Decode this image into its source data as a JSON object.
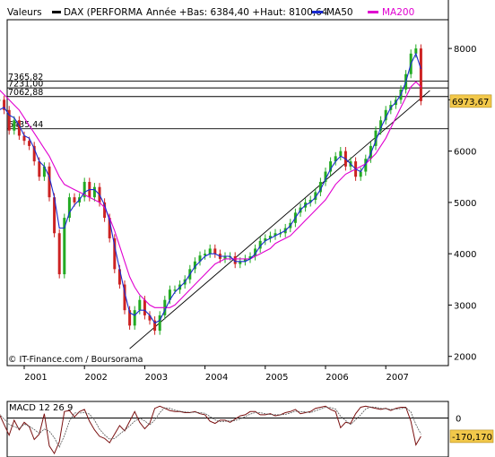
{
  "header": {
    "series_label": "Valeurs",
    "instrument": "DAX (PERFORMA",
    "period_info": "Année +Bas: 6384,40 +Haut: 8100,64",
    "ma50_label": "MA50",
    "ma200_label": "MA200"
  },
  "credit": "© IT-Finance.com / Boursorama",
  "colors": {
    "price_up": "#22aa22",
    "price_down": "#cc2222",
    "ma50": "#1a2ad0",
    "ma200": "#e000d0",
    "last_badge": "#f2c84a",
    "frame": "#000000",
    "grid": "#000000"
  },
  "chart_data": [
    {
      "type": "line",
      "title": "DAX (PERFORMA",
      "y_scale": "linear",
      "ylim": [
        1900,
        8500
      ],
      "y_ticks": [
        2000,
        3000,
        4000,
        5000,
        6000,
        7000,
        8000
      ],
      "y_tick_labels": [
        "2000",
        "3000",
        "4000",
        "5000",
        "6000",
        "7000",
        "8000"
      ],
      "x_ticks": [
        "2001",
        "2002",
        "2003",
        "2004",
        "2005",
        "2006",
        "2007"
      ],
      "grid": true,
      "legend": "top",
      "last_value": 6973.67,
      "last_value_label": "6973,67",
      "horizontal_levels": [
        {
          "value": 7365.82,
          "label": "7365,82"
        },
        {
          "value": 7231.0,
          "label": "7231,00"
        },
        {
          "value": 7062.88,
          "label": "7062,88"
        },
        {
          "value": 6435.44,
          "label": "6435,44"
        }
      ],
      "trendline": {
        "from": {
          "x": "2002-10",
          "y": 2150
        },
        "to": {
          "x": "2007-08",
          "y": 6930
        }
      },
      "x_dates": [
        "2000-08",
        "2000-09",
        "2000-10",
        "2000-11",
        "2000-12",
        "2001-01",
        "2001-02",
        "2001-03",
        "2001-04",
        "2001-05",
        "2001-06",
        "2001-07",
        "2001-08",
        "2001-09",
        "2001-10",
        "2001-11",
        "2001-12",
        "2002-01",
        "2002-02",
        "2002-03",
        "2002-04",
        "2002-05",
        "2002-06",
        "2002-07",
        "2002-08",
        "2002-09",
        "2002-10",
        "2002-11",
        "2002-12",
        "2003-01",
        "2003-02",
        "2003-03",
        "2003-04",
        "2003-05",
        "2003-06",
        "2003-07",
        "2003-08",
        "2003-09",
        "2003-10",
        "2003-11",
        "2003-12",
        "2004-01",
        "2004-02",
        "2004-03",
        "2004-04",
        "2004-05",
        "2004-06",
        "2004-07",
        "2004-08",
        "2004-09",
        "2004-10",
        "2004-11",
        "2004-12",
        "2005-01",
        "2005-02",
        "2005-03",
        "2005-04",
        "2005-05",
        "2005-06",
        "2005-07",
        "2005-08",
        "2005-09",
        "2005-10",
        "2005-11",
        "2005-12",
        "2006-01",
        "2006-02",
        "2006-03",
        "2006-04",
        "2006-05",
        "2006-06",
        "2006-07",
        "2006-08",
        "2006-09",
        "2006-10",
        "2006-11",
        "2006-12",
        "2007-01",
        "2007-02",
        "2007-03",
        "2007-04",
        "2007-05",
        "2007-06",
        "2007-07",
        "2007-08"
      ],
      "series": [
        {
          "name": "DAX (PERFORMA",
          "values": [
            7000,
            6800,
            6400,
            6600,
            6300,
            6200,
            6100,
            5800,
            5500,
            5700,
            5100,
            4400,
            3600,
            4700,
            5100,
            5000,
            5100,
            5400,
            5100,
            5300,
            5000,
            4700,
            4300,
            3700,
            3400,
            2900,
            2600,
            2900,
            3100,
            2800,
            2700,
            2500,
            2800,
            3100,
            3300,
            3300,
            3400,
            3500,
            3700,
            3850,
            3965,
            4000,
            4100,
            4000,
            3900,
            3950,
            3950,
            3800,
            3850,
            3900,
            3950,
            4100,
            4250,
            4300,
            4350,
            4400,
            4400,
            4500,
            4600,
            4800,
            4900,
            5000,
            5050,
            5200,
            5400,
            5600,
            5800,
            5900,
            6000,
            5700,
            5800,
            5500,
            5600,
            5850,
            6100,
            6400,
            6600,
            6800,
            6900,
            7000,
            7200,
            7500,
            7900,
            8000,
            6973.67
          ]
        },
        {
          "name": "MA50",
          "values": [
            6800,
            6850,
            6700,
            6650,
            6500,
            6300,
            6250,
            6050,
            5800,
            5700,
            5500,
            5100,
            4500,
            4500,
            4800,
            4950,
            5050,
            5200,
            5250,
            5250,
            5150,
            4950,
            4650,
            4150,
            3700,
            3250,
            2850,
            2800,
            2900,
            2900,
            2800,
            2650,
            2700,
            2900,
            3100,
            3250,
            3350,
            3450,
            3600,
            3750,
            3850,
            3950,
            4000,
            4000,
            3950,
            3950,
            3950,
            3850,
            3850,
            3850,
            3900,
            4000,
            4150,
            4250,
            4300,
            4350,
            4400,
            4450,
            4550,
            4700,
            4850,
            4950,
            5000,
            5100,
            5250,
            5450,
            5650,
            5800,
            5900,
            5850,
            5750,
            5650,
            5600,
            5750,
            5950,
            6200,
            6450,
            6650,
            6850,
            6950,
            7100,
            7350,
            7700,
            7900,
            7600
          ]
        },
        {
          "name": "MA200",
          "values": [
            7200,
            7100,
            7000,
            6900,
            6800,
            6650,
            6500,
            6350,
            6200,
            6050,
            5900,
            5700,
            5500,
            5350,
            5300,
            5250,
            5200,
            5150,
            5100,
            5050,
            5000,
            4900,
            4700,
            4450,
            4150,
            3850,
            3550,
            3350,
            3200,
            3100,
            3000,
            2950,
            2950,
            2950,
            2950,
            3000,
            3100,
            3200,
            3300,
            3400,
            3500,
            3600,
            3700,
            3800,
            3850,
            3900,
            3900,
            3900,
            3900,
            3900,
            3900,
            3950,
            4000,
            4050,
            4100,
            4200,
            4250,
            4300,
            4350,
            4450,
            4550,
            4650,
            4750,
            4850,
            4950,
            5050,
            5200,
            5350,
            5450,
            5550,
            5600,
            5650,
            5700,
            5750,
            5850,
            5950,
            6100,
            6250,
            6450,
            6650,
            6850,
            7050,
            7250,
            7350,
            7250
          ]
        }
      ]
    },
    {
      "type": "line",
      "title": "MACD 12 26 9",
      "x_ticks": [],
      "y_tick_labels": [
        "0"
      ],
      "last_value": -170.17,
      "last_value_label": "-170,170",
      "ylim": [
        -350,
        250
      ],
      "series": [
        {
          "name": "MACD 12 26 9",
          "values": [
            40,
            -60,
            -160,
            -20,
            -110,
            -40,
            -80,
            -200,
            -150,
            40,
            -260,
            -330,
            -220,
            60,
            70,
            10,
            60,
            80,
            -30,
            -110,
            -170,
            -190,
            -230,
            -150,
            -70,
            -120,
            -30,
            60,
            -40,
            -100,
            -50,
            90,
            110,
            90,
            70,
            60,
            60,
            50,
            50,
            60,
            40,
            30,
            -30,
            -50,
            -20,
            -20,
            -40,
            -10,
            20,
            30,
            60,
            60,
            30,
            30,
            40,
            20,
            30,
            50,
            60,
            80,
            40,
            50,
            60,
            90,
            100,
            110,
            80,
            60,
            -90,
            -40,
            -50,
            40,
            100,
            110,
            100,
            90,
            80,
            90,
            70,
            90,
            100,
            100,
            -30,
            -250,
            -170.17
          ]
        }
      ]
    }
  ]
}
